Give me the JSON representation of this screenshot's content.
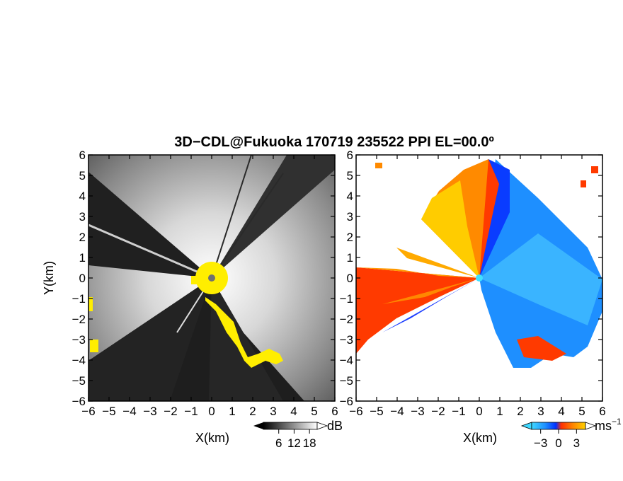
{
  "figure": {
    "title": "3D−CDL@Fukuoka 170719 235522 PPI EL=00.0º"
  },
  "chart_data": [
    {
      "type": "heatmap",
      "panel": "left",
      "title": "",
      "xlabel": "X(km)",
      "ylabel": "Y(km)",
      "xlim": [
        -6,
        6
      ],
      "ylim": [
        -6,
        6
      ],
      "xticks": [
        -6,
        -5,
        -4,
        -3,
        -2,
        -1,
        0,
        1,
        2,
        3,
        4,
        5,
        6
      ],
      "yticks": [
        -6,
        -5,
        -4,
        -3,
        -2,
        -1,
        0,
        1,
        2,
        3,
        4,
        5,
        6
      ],
      "xtick_labels": [
        "−6",
        "−5",
        "−4",
        "−3",
        "−2",
        "−1",
        "0",
        "1",
        "2",
        "3",
        "4",
        "5",
        "6"
      ],
      "ytick_labels": [
        "−6",
        "−5",
        "−4",
        "−3",
        "−2",
        "−1",
        "0",
        "1",
        "2",
        "3",
        "4",
        "5",
        "6"
      ],
      "colormap": "grayscale",
      "highlight_color": "#ffee00",
      "colorbar": {
        "unit": "dB",
        "ticks": [
          6,
          12,
          18
        ],
        "tick_labels": [
          "6",
          "12",
          "18"
        ],
        "range": [
          0,
          21
        ]
      }
    },
    {
      "type": "heatmap",
      "panel": "right",
      "title": "",
      "xlabel": "X(km)",
      "ylabel": "",
      "xlim": [
        -6,
        6
      ],
      "ylim": [
        -6,
        6
      ],
      "xticks": [
        -6,
        -5,
        -4,
        -3,
        -2,
        -1,
        0,
        1,
        2,
        3,
        4,
        5,
        6
      ],
      "yticks": [
        -6,
        -5,
        -4,
        -3,
        -2,
        -1,
        0,
        1,
        2,
        3,
        4,
        5,
        6
      ],
      "xtick_labels": [
        "−6",
        "−5",
        "−4",
        "−3",
        "−2",
        "−1",
        "0",
        "1",
        "2",
        "3",
        "4",
        "5",
        "6"
      ],
      "ytick_labels": [
        "−6",
        "−5",
        "−4",
        "−3",
        "−2",
        "−1",
        "0",
        "1",
        "2",
        "3",
        "4",
        "5",
        "6"
      ],
      "colormap": "diverging-blue-red-yellow",
      "colors": [
        "#40d8ff",
        "#1e90ff",
        "#0030ff",
        "#ff3000",
        "#ff8a00",
        "#ffd000"
      ],
      "colorbar": {
        "unit": "ms",
        "unit_exponent": "−1",
        "ticks": [
          -3,
          0,
          3
        ],
        "tick_labels": [
          "−3",
          "0",
          "3"
        ],
        "range": [
          -4.5,
          4.5
        ]
      }
    }
  ]
}
